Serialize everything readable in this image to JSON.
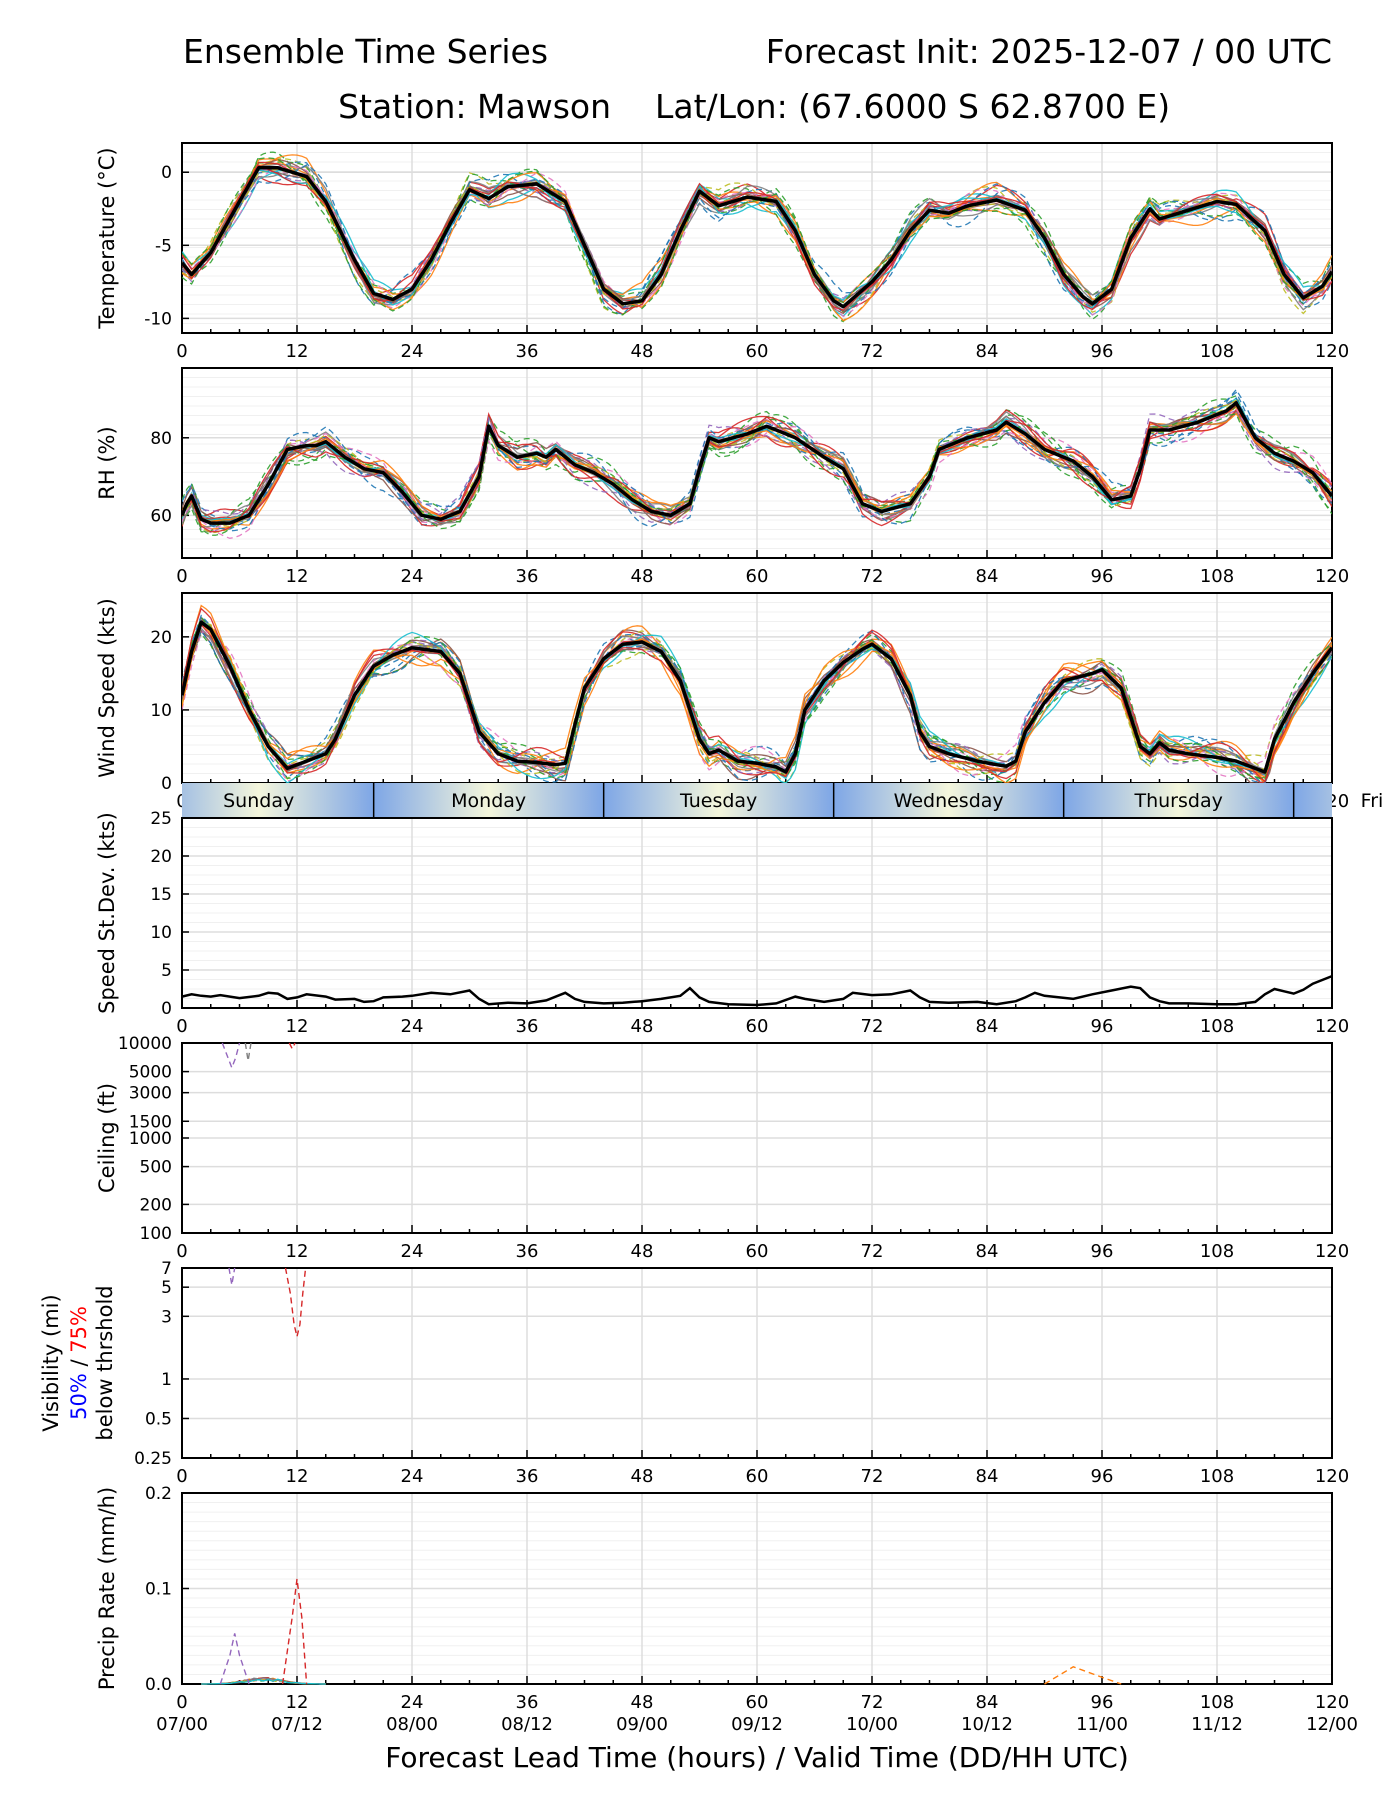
{
  "header": {
    "title_left": "Ensemble Time Series",
    "title_right": "Forecast Init: 2025-12-07 / 00 UTC",
    "station": "Station: Mawson",
    "latlon": "Lat/Lon: (67.6000 S 62.8700 E)"
  },
  "colors": {
    "mean": "#000000",
    "members": [
      "#1f77b4",
      "#ff7f0e",
      "#2ca02c",
      "#d62728",
      "#9467bd",
      "#8c564b",
      "#e377c2",
      "#7f7f7f",
      "#bcbd22",
      "#17becf"
    ],
    "grid": "#dddddd",
    "day_band_light": "#f4f6dc",
    "day_band_dark": "#7ea6e6",
    "vis_50": "#0000ff",
    "vis_75": "#ff0000"
  },
  "chart_data": [
    {
      "id": "temperature",
      "type": "line",
      "ylabel": "Temperature (°C)",
      "ylim": [
        -11,
        2
      ],
      "yticks": [
        0,
        -5,
        -10
      ],
      "xlim": [
        0,
        120
      ],
      "xticks": [
        0,
        12,
        24,
        36,
        48,
        60,
        72,
        84,
        96,
        108,
        120
      ],
      "xlabel": "Forecast Lead Time (hours)",
      "mean": [
        [
          0,
          -6.2
        ],
        [
          1,
          -7
        ],
        [
          3,
          -5.5
        ],
        [
          6,
          -2
        ],
        [
          8,
          0.3
        ],
        [
          10,
          0.3
        ],
        [
          13,
          -0.3
        ],
        [
          15,
          -2
        ],
        [
          18,
          -6
        ],
        [
          20,
          -8.3
        ],
        [
          22,
          -8.7
        ],
        [
          24,
          -8
        ],
        [
          26,
          -6
        ],
        [
          28,
          -3.5
        ],
        [
          30,
          -1.2
        ],
        [
          32,
          -1.8
        ],
        [
          34,
          -1
        ],
        [
          37,
          -0.8
        ],
        [
          40,
          -2
        ],
        [
          42,
          -5
        ],
        [
          44,
          -8
        ],
        [
          46,
          -9
        ],
        [
          48,
          -8.8
        ],
        [
          50,
          -7
        ],
        [
          52,
          -4
        ],
        [
          54,
          -1.3
        ],
        [
          56,
          -2.3
        ],
        [
          59,
          -1.7
        ],
        [
          62,
          -2
        ],
        [
          64,
          -4
        ],
        [
          66,
          -7
        ],
        [
          68,
          -8.8
        ],
        [
          69,
          -9.2
        ],
        [
          72,
          -7.5
        ],
        [
          74,
          -6
        ],
        [
          76,
          -4
        ],
        [
          78,
          -2.6
        ],
        [
          80,
          -2.8
        ],
        [
          82,
          -2.3
        ],
        [
          85,
          -1.9
        ],
        [
          88,
          -2.6
        ],
        [
          90,
          -4.5
        ],
        [
          92,
          -7
        ],
        [
          94,
          -8.5
        ],
        [
          95,
          -9
        ],
        [
          97,
          -8
        ],
        [
          99,
          -4.5
        ],
        [
          101,
          -2.5
        ],
        [
          102,
          -3.2
        ],
        [
          104,
          -2.8
        ],
        [
          106,
          -2.4
        ],
        [
          108,
          -2
        ],
        [
          110,
          -2.2
        ],
        [
          113,
          -4
        ],
        [
          115,
          -7
        ],
        [
          117,
          -8.6
        ],
        [
          119,
          -7.8
        ],
        [
          120,
          -6.8
        ]
      ],
      "spread_members": 10,
      "members_count": 10
    },
    {
      "id": "rh",
      "type": "line",
      "ylabel": "RH (%)",
      "ylim": [
        49,
        98
      ],
      "yticks": [
        60,
        80
      ],
      "xlim": [
        0,
        120
      ],
      "xticks": [
        0,
        12,
        24,
        36,
        48,
        60,
        72,
        84,
        96,
        108,
        120
      ],
      "mean": [
        [
          0,
          60
        ],
        [
          0.5,
          63
        ],
        [
          1,
          65
        ],
        [
          2,
          59
        ],
        [
          3,
          58
        ],
        [
          5,
          58
        ],
        [
          7,
          60
        ],
        [
          9,
          68
        ],
        [
          11,
          77
        ],
        [
          13,
          78
        ],
        [
          14,
          78
        ],
        [
          15,
          79
        ],
        [
          17,
          75
        ],
        [
          19,
          72
        ],
        [
          21,
          71
        ],
        [
          23,
          66
        ],
        [
          25,
          60
        ],
        [
          27,
          59
        ],
        [
          29,
          61
        ],
        [
          31,
          70
        ],
        [
          32,
          83
        ],
        [
          33,
          78
        ],
        [
          35,
          75
        ],
        [
          37,
          76
        ],
        [
          38,
          75
        ],
        [
          39,
          77
        ],
        [
          41,
          73
        ],
        [
          43,
          71
        ],
        [
          45,
          68
        ],
        [
          47,
          64
        ],
        [
          49,
          61
        ],
        [
          51,
          60
        ],
        [
          53,
          63
        ],
        [
          54,
          72
        ],
        [
          55,
          80
        ],
        [
          56,
          79
        ],
        [
          59,
          81
        ],
        [
          61,
          83
        ],
        [
          62,
          82
        ],
        [
          64,
          80
        ],
        [
          67,
          75
        ],
        [
          69,
          72
        ],
        [
          71,
          63
        ],
        [
          73,
          61
        ],
        [
          76,
          63
        ],
        [
          78,
          70
        ],
        [
          79,
          77
        ],
        [
          82,
          80
        ],
        [
          85,
          82
        ],
        [
          86,
          84
        ],
        [
          88,
          81
        ],
        [
          90,
          77
        ],
        [
          93,
          74
        ],
        [
          95,
          70
        ],
        [
          97,
          64
        ],
        [
          99,
          65
        ],
        [
          100,
          72
        ],
        [
          101,
          82
        ],
        [
          103,
          82
        ],
        [
          106,
          84
        ],
        [
          109,
          87
        ],
        [
          110,
          89
        ],
        [
          112,
          80
        ],
        [
          114,
          76
        ],
        [
          116,
          74
        ],
        [
          118,
          71
        ],
        [
          120,
          65
        ]
      ]
    },
    {
      "id": "wind_speed",
      "type": "line",
      "ylabel": "Wind Speed (kts)",
      "ylim": [
        0,
        26
      ],
      "yticks": [
        0,
        10,
        20
      ],
      "xlim": [
        0,
        120
      ],
      "xticks": [
        0,
        12,
        24,
        36,
        48,
        60,
        72,
        84,
        96,
        108,
        120
      ],
      "mean": [
        [
          0,
          12
        ],
        [
          1,
          18
        ],
        [
          2,
          22
        ],
        [
          3,
          21
        ],
        [
          5,
          16
        ],
        [
          7,
          10
        ],
        [
          9,
          5
        ],
        [
          11,
          2
        ],
        [
          13,
          3
        ],
        [
          15,
          4
        ],
        [
          16,
          6
        ],
        [
          18,
          12
        ],
        [
          20,
          16
        ],
        [
          22,
          17.5
        ],
        [
          24,
          18.5
        ],
        [
          27,
          18
        ],
        [
          29,
          15
        ],
        [
          31,
          7
        ],
        [
          32,
          5.5
        ],
        [
          33,
          4
        ],
        [
          35,
          3
        ],
        [
          37,
          2.8
        ],
        [
          39,
          2.5
        ],
        [
          40,
          2.7
        ],
        [
          41,
          8
        ],
        [
          42,
          13
        ],
        [
          44,
          17
        ],
        [
          46,
          19
        ],
        [
          48,
          19.3
        ],
        [
          50,
          18
        ],
        [
          52,
          14
        ],
        [
          54,
          6
        ],
        [
          55,
          4
        ],
        [
          56,
          4.5
        ],
        [
          58,
          3
        ],
        [
          60,
          2.7
        ],
        [
          62,
          2.2
        ],
        [
          63,
          1.5
        ],
        [
          64,
          4
        ],
        [
          65,
          10
        ],
        [
          67,
          14
        ],
        [
          69,
          16.5
        ],
        [
          71,
          18.3
        ],
        [
          72,
          19
        ],
        [
          74,
          17
        ],
        [
          76,
          12
        ],
        [
          77,
          7
        ],
        [
          78,
          5
        ],
        [
          80,
          4
        ],
        [
          83,
          3
        ],
        [
          85,
          2.5
        ],
        [
          86,
          2.3
        ],
        [
          87,
          3
        ],
        [
          88,
          7
        ],
        [
          90,
          11
        ],
        [
          92,
          14
        ],
        [
          95,
          15
        ],
        [
          96,
          15.5
        ],
        [
          98,
          13
        ],
        [
          99,
          9
        ],
        [
          100,
          5
        ],
        [
          101,
          4
        ],
        [
          102,
          5.5
        ],
        [
          103,
          4.5
        ],
        [
          105,
          4
        ],
        [
          108,
          3.5
        ],
        [
          110,
          3
        ],
        [
          112,
          2
        ],
        [
          113,
          1.5
        ],
        [
          114,
          6
        ],
        [
          116,
          11
        ],
        [
          118,
          15
        ],
        [
          120,
          18.5
        ]
      ]
    },
    {
      "id": "days",
      "type": "band",
      "labels": [
        "Sunday",
        "Monday",
        "Tuesday",
        "Wednesday",
        "Thursday",
        "Fri"
      ],
      "hours_start": [
        -4,
        20,
        44,
        68,
        92,
        116
      ]
    },
    {
      "id": "speed_stdev",
      "type": "line",
      "ylabel": "Speed St.Dev. (kts)",
      "ylim": [
        0,
        25
      ],
      "yticks": [
        0,
        5,
        10,
        15,
        20,
        25
      ],
      "xlim": [
        0,
        120
      ],
      "xticks": [
        0,
        12,
        24,
        36,
        48,
        60,
        72,
        84,
        96,
        108,
        120
      ],
      "mean": [
        [
          0,
          1.5
        ],
        [
          1,
          1.8
        ],
        [
          2,
          1.6
        ],
        [
          3,
          1.5
        ],
        [
          4,
          1.7
        ],
        [
          6,
          1.3
        ],
        [
          8,
          1.6
        ],
        [
          9,
          2
        ],
        [
          10,
          1.9
        ],
        [
          11,
          1.2
        ],
        [
          12,
          1.4
        ],
        [
          13,
          1.8
        ],
        [
          15,
          1.5
        ],
        [
          16,
          1.1
        ],
        [
          18,
          1.2
        ],
        [
          19,
          0.8
        ],
        [
          20,
          0.9
        ],
        [
          21,
          1.4
        ],
        [
          23,
          1.5
        ],
        [
          24,
          1.6
        ],
        [
          26,
          2
        ],
        [
          28,
          1.8
        ],
        [
          30,
          2.3
        ],
        [
          31,
          1.2
        ],
        [
          32,
          0.5
        ],
        [
          34,
          0.7
        ],
        [
          36,
          0.6
        ],
        [
          38,
          1
        ],
        [
          40,
          2
        ],
        [
          41,
          1.2
        ],
        [
          42,
          0.8
        ],
        [
          44,
          0.6
        ],
        [
          46,
          0.7
        ],
        [
          48,
          0.9
        ],
        [
          50,
          1.2
        ],
        [
          52,
          1.6
        ],
        [
          53,
          2.6
        ],
        [
          54,
          1.4
        ],
        [
          55,
          0.8
        ],
        [
          57,
          0.5
        ],
        [
          60,
          0.4
        ],
        [
          62,
          0.6
        ],
        [
          64,
          1.5
        ],
        [
          65,
          1.2
        ],
        [
          67,
          0.8
        ],
        [
          69,
          1.2
        ],
        [
          70,
          2
        ],
        [
          72,
          1.7
        ],
        [
          74,
          1.8
        ],
        [
          76,
          2.3
        ],
        [
          77,
          1.4
        ],
        [
          78,
          0.8
        ],
        [
          80,
          0.7
        ],
        [
          83,
          0.8
        ],
        [
          85,
          0.5
        ],
        [
          87,
          0.9
        ],
        [
          88,
          1.4
        ],
        [
          89,
          2
        ],
        [
          90,
          1.6
        ],
        [
          93,
          1.2
        ],
        [
          95,
          1.8
        ],
        [
          97,
          2.3
        ],
        [
          99,
          2.8
        ],
        [
          100,
          2.6
        ],
        [
          101,
          1.4
        ],
        [
          102,
          0.9
        ],
        [
          103,
          0.6
        ],
        [
          105,
          0.6
        ],
        [
          108,
          0.5
        ],
        [
          110,
          0.5
        ],
        [
          112,
          0.8
        ],
        [
          113,
          1.8
        ],
        [
          114,
          2.5
        ],
        [
          115,
          2.2
        ],
        [
          116,
          1.9
        ],
        [
          117,
          2.4
        ],
        [
          118,
          3.2
        ],
        [
          120,
          4.2
        ]
      ]
    },
    {
      "id": "ceiling",
      "type": "line",
      "yscale": "log",
      "ylabel": "Ceiling (ft)",
      "ylim": [
        100,
        10000
      ],
      "yticks": [
        100,
        200,
        500,
        1000,
        1500,
        3000,
        5000,
        10000
      ],
      "xlim": [
        0,
        120
      ],
      "xticks": [
        0,
        12,
        24,
        36,
        48,
        60,
        72,
        84,
        96,
        108,
        120
      ]
    },
    {
      "id": "visibility",
      "type": "line",
      "yscale": "log",
      "ylabel": "Visibility (mi)",
      "ylabel_50": "50%",
      "ylabel_sep": " / ",
      "ylabel_75": "75%",
      "ylabel_line3": "below thrshold",
      "ylim": [
        0.25,
        7
      ],
      "yticks": [
        0.25,
        0.5,
        1,
        3,
        5,
        7
      ],
      "xlim": [
        0,
        120
      ],
      "xticks": [
        0,
        12,
        24,
        36,
        48,
        60,
        72,
        84,
        96,
        108,
        120
      ]
    },
    {
      "id": "precip",
      "type": "line",
      "ylabel": "Precip Rate (mm/h)",
      "ylim": [
        0,
        0.2
      ],
      "yticks": [
        "0.0",
        "0.1",
        "0.2"
      ],
      "xlim": [
        0,
        120
      ],
      "xticks": [
        0,
        12,
        24,
        36,
        48,
        60,
        72,
        84,
        96,
        108,
        120
      ],
      "xdates": [
        "07/00",
        "07/12",
        "08/00",
        "08/12",
        "09/00",
        "09/12",
        "10/00",
        "10/12",
        "11/00",
        "11/12",
        "12/00"
      ],
      "xlabel": "Forecast Lead Time (hours) / Valid Time (DD/HH UTC)",
      "spikes": [
        {
          "member": 4,
          "points": [
            [
              4,
              0
            ],
            [
              5,
              0.03
            ],
            [
              5.5,
              0.053
            ],
            [
              6,
              0.03
            ],
            [
              7,
              0
            ]
          ]
        },
        {
          "member": 3,
          "points": [
            [
              10.5,
              0
            ],
            [
              11.5,
              0.07
            ],
            [
              12,
              0.11
            ],
            [
              12.5,
              0.07
            ],
            [
              13,
              0
            ]
          ]
        },
        {
          "member": 1,
          "points": [
            [
              90,
              0
            ],
            [
              93,
              0.018
            ],
            [
              96,
              0.007
            ],
            [
              98,
              0
            ]
          ]
        }
      ]
    }
  ]
}
